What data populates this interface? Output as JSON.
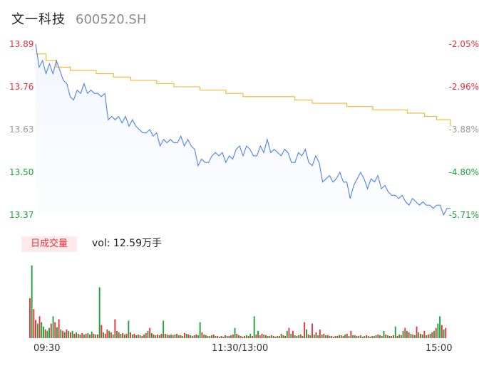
{
  "header": {
    "name": "文一科技",
    "code": "600520.SH"
  },
  "chart_data": {
    "type": "line",
    "price_axis": {
      "ticks": [
        "13.89",
        "13.76",
        "13.63",
        "13.50",
        "13.37"
      ],
      "tick_colors": [
        "#e8313b",
        "#e8313b",
        "#9a9a9a",
        "#1aa33a",
        "#1aa33a"
      ],
      "ylim": [
        13.37,
        13.89
      ]
    },
    "pct_axis": {
      "ticks": [
        "-2.05%",
        "-2.96%",
        "-3.88%",
        "-4.80%",
        "-5.71%"
      ],
      "tick_colors": [
        "#e8313b",
        "#e8313b",
        "#9a9a9a",
        "#1aa33a",
        "#1aa33a"
      ]
    },
    "x_ticks": [
      "09:30",
      "11:30/13:00",
      "15:00"
    ],
    "minutes_total": 240,
    "price_series": [
      [
        0,
        13.89
      ],
      [
        2,
        13.82
      ],
      [
        4,
        13.84
      ],
      [
        6,
        13.8
      ],
      [
        8,
        13.83
      ],
      [
        10,
        13.8
      ],
      [
        12,
        13.84
      ],
      [
        14,
        13.81
      ],
      [
        16,
        13.78
      ],
      [
        18,
        13.77
      ],
      [
        20,
        13.73
      ],
      [
        22,
        13.72
      ],
      [
        24,
        13.75
      ],
      [
        26,
        13.74
      ],
      [
        28,
        13.77
      ],
      [
        30,
        13.74
      ],
      [
        32,
        13.75
      ],
      [
        34,
        13.74
      ],
      [
        36,
        13.74
      ],
      [
        38,
        13.73
      ],
      [
        40,
        13.74
      ],
      [
        42,
        13.66
      ],
      [
        44,
        13.67
      ],
      [
        46,
        13.66
      ],
      [
        48,
        13.67
      ],
      [
        50,
        13.65
      ],
      [
        52,
        13.67
      ],
      [
        54,
        13.64
      ],
      [
        56,
        13.66
      ],
      [
        58,
        13.64
      ],
      [
        60,
        13.63
      ],
      [
        62,
        13.62
      ],
      [
        64,
        13.62
      ],
      [
        66,
        13.63
      ],
      [
        68,
        13.61
      ],
      [
        70,
        13.62
      ],
      [
        72,
        13.58
      ],
      [
        74,
        13.6
      ],
      [
        76,
        13.59
      ],
      [
        78,
        13.6
      ],
      [
        80,
        13.59
      ],
      [
        82,
        13.59
      ],
      [
        84,
        13.61
      ],
      [
        86,
        13.58
      ],
      [
        88,
        13.6
      ],
      [
        90,
        13.58
      ],
      [
        92,
        13.57
      ],
      [
        94,
        13.52
      ],
      [
        96,
        13.54
      ],
      [
        98,
        13.53
      ],
      [
        100,
        13.53
      ],
      [
        102,
        13.55
      ],
      [
        104,
        13.56
      ],
      [
        106,
        13.55
      ],
      [
        108,
        13.56
      ],
      [
        110,
        13.53
      ],
      [
        112,
        13.55
      ],
      [
        114,
        13.54
      ],
      [
        116,
        13.57
      ],
      [
        118,
        13.58
      ],
      [
        120,
        13.55
      ],
      [
        122,
        13.58
      ],
      [
        124,
        13.57
      ],
      [
        126,
        13.55
      ],
      [
        128,
        13.55
      ],
      [
        130,
        13.58
      ],
      [
        132,
        13.56
      ],
      [
        134,
        13.6
      ],
      [
        136,
        13.56
      ],
      [
        138,
        13.57
      ],
      [
        140,
        13.56
      ],
      [
        142,
        13.55
      ],
      [
        144,
        13.57
      ],
      [
        146,
        13.56
      ],
      [
        148,
        13.53
      ],
      [
        150,
        13.53
      ],
      [
        152,
        13.56
      ],
      [
        154,
        13.55
      ],
      [
        156,
        13.57
      ],
      [
        158,
        13.53
      ],
      [
        160,
        13.52
      ],
      [
        162,
        13.55
      ],
      [
        164,
        13.53
      ],
      [
        166,
        13.47
      ],
      [
        168,
        13.48
      ],
      [
        170,
        13.49
      ],
      [
        172,
        13.47
      ],
      [
        174,
        13.48
      ],
      [
        176,
        13.5
      ],
      [
        178,
        13.47
      ],
      [
        180,
        13.47
      ],
      [
        182,
        13.42
      ],
      [
        184,
        13.46
      ],
      [
        186,
        13.48
      ],
      [
        188,
        13.5
      ],
      [
        190,
        13.48
      ],
      [
        192,
        13.45
      ],
      [
        194,
        13.48
      ],
      [
        196,
        13.47
      ],
      [
        198,
        13.49
      ],
      [
        200,
        13.45
      ],
      [
        202,
        13.46
      ],
      [
        204,
        13.44
      ],
      [
        206,
        13.43
      ],
      [
        208,
        13.43
      ],
      [
        210,
        13.42
      ],
      [
        212,
        13.43
      ],
      [
        214,
        13.41
      ],
      [
        216,
        13.4
      ],
      [
        218,
        13.42
      ],
      [
        220,
        13.41
      ],
      [
        222,
        13.4
      ],
      [
        224,
        13.41
      ],
      [
        226,
        13.4
      ],
      [
        228,
        13.4
      ],
      [
        230,
        13.39
      ],
      [
        232,
        13.4
      ],
      [
        234,
        13.4
      ],
      [
        236,
        13.37
      ],
      [
        238,
        13.39
      ],
      [
        240,
        13.39
      ]
    ],
    "avg_series": [
      [
        0,
        13.86
      ],
      [
        6,
        13.84
      ],
      [
        12,
        13.82
      ],
      [
        20,
        13.81
      ],
      [
        30,
        13.81
      ],
      [
        35,
        13.8
      ],
      [
        45,
        13.79
      ],
      [
        55,
        13.78
      ],
      [
        70,
        13.77
      ],
      [
        80,
        13.76
      ],
      [
        95,
        13.75
      ],
      [
        110,
        13.74
      ],
      [
        120,
        13.73
      ],
      [
        135,
        13.73
      ],
      [
        150,
        13.72
      ],
      [
        160,
        13.71
      ],
      [
        170,
        13.71
      ],
      [
        180,
        13.7
      ],
      [
        195,
        13.69
      ],
      [
        205,
        13.69
      ],
      [
        215,
        13.68
      ],
      [
        225,
        13.67
      ],
      [
        232,
        13.66
      ],
      [
        240,
        13.64
      ]
    ],
    "volume": [
      0.55,
      1.0,
      0.4,
      0.25,
      0.2,
      0.3,
      0.22,
      0.16,
      0.12,
      0.1,
      0.14,
      0.2,
      0.3,
      0.22,
      0.15,
      0.26,
      0.12,
      0.1,
      0.08,
      0.12,
      0.1,
      0.08,
      0.1,
      0.06,
      0.08,
      0.06,
      0.05,
      0.07,
      0.05,
      0.06,
      0.07,
      0.05,
      0.09,
      0.06,
      0.05,
      0.05,
      0.7,
      0.18,
      0.08,
      0.06,
      0.12,
      0.1,
      0.08,
      0.05,
      0.26,
      0.1,
      0.08,
      0.06,
      0.07,
      0.05,
      0.06,
      0.24,
      0.08,
      0.05,
      0.06,
      0.04,
      0.05,
      0.04,
      0.03,
      0.05,
      0.07,
      0.1,
      0.14,
      0.07,
      0.05,
      0.04,
      0.05,
      0.04,
      0.06,
      0.24,
      0.06,
      0.05,
      0.04,
      0.05,
      0.04,
      0.05,
      0.06,
      0.04,
      0.04,
      0.03,
      0.07,
      0.06,
      0.05,
      0.04,
      0.03,
      0.04,
      0.05,
      0.04,
      0.22,
      0.08,
      0.05,
      0.04,
      0.03,
      0.03,
      0.04,
      0.05,
      0.03,
      0.03,
      0.02,
      0.03,
      0.02,
      0.04,
      0.03,
      0.03,
      0.04,
      0.05,
      0.14,
      0.06,
      0.04,
      0.03,
      0.02,
      0.03,
      0.04,
      0.03,
      0.06,
      0.03,
      0.3,
      0.05,
      0.1,
      0.04,
      0.06,
      0.05,
      0.04,
      0.03,
      0.03,
      0.04,
      0.03,
      0.02,
      0.03,
      0.03,
      0.06,
      0.04,
      0.03,
      0.1,
      0.14,
      0.06,
      0.1,
      0.04,
      0.03,
      0.04,
      0.05,
      0.03,
      0.22,
      0.12,
      0.05,
      0.04,
      0.2,
      0.05,
      0.08,
      0.04,
      0.12,
      0.05,
      0.06,
      0.04,
      0.04,
      0.03,
      0.03,
      0.02,
      0.03,
      0.03,
      0.04,
      0.04,
      0.03,
      0.05,
      0.06,
      0.03,
      0.1,
      0.04,
      0.04,
      0.03,
      0.03,
      0.04,
      0.02,
      0.03,
      0.04,
      0.03,
      0.02,
      0.03,
      0.03,
      0.04,
      0.05,
      0.04,
      0.03,
      0.1,
      0.05,
      0.04,
      0.03,
      0.03,
      0.04,
      0.16,
      0.03,
      0.05,
      0.04,
      0.1,
      0.14,
      0.1,
      0.08,
      0.06,
      0.05,
      0.04,
      0.16,
      0.08,
      0.06,
      0.05,
      0.1,
      0.04,
      0.05,
      0.06,
      0.08,
      0.1,
      0.14,
      0.2,
      0.3,
      0.18,
      0.12,
      0.14
    ],
    "volume_colors": [
      "r",
      "g",
      "r",
      "r",
      "g",
      "r",
      "g",
      "g",
      "r",
      "g",
      "g",
      "r",
      "g",
      "r",
      "g",
      "r",
      "g",
      "r",
      "g",
      "r",
      "g",
      "r",
      "g",
      "r",
      "g",
      "r",
      "g",
      "r",
      "g",
      "r",
      "g",
      "r",
      "g",
      "r",
      "g",
      "r",
      "g",
      "r",
      "g",
      "r",
      "r",
      "g",
      "r",
      "g",
      "r",
      "g",
      "r",
      "g",
      "r",
      "g",
      "r",
      "g",
      "r",
      "g",
      "r",
      "g",
      "r",
      "g",
      "r",
      "g",
      "r",
      "g",
      "r",
      "g",
      "r",
      "g",
      "r",
      "g",
      "r",
      "g",
      "r",
      "g",
      "r",
      "g",
      "r",
      "g",
      "r",
      "g",
      "r",
      "g",
      "r",
      "g",
      "r",
      "g",
      "r",
      "g",
      "r",
      "g",
      "g",
      "r",
      "g",
      "r",
      "g",
      "r",
      "g",
      "r",
      "g",
      "r",
      "g",
      "r",
      "g",
      "r",
      "g",
      "r",
      "g",
      "r",
      "g",
      "r",
      "g",
      "r",
      "g",
      "r",
      "g",
      "r",
      "g",
      "r",
      "g",
      "r",
      "g",
      "r",
      "r",
      "g",
      "r",
      "g",
      "r",
      "g",
      "r",
      "g",
      "r",
      "g",
      "r",
      "g",
      "r",
      "g",
      "r",
      "g",
      "r",
      "g",
      "r",
      "g",
      "r",
      "g",
      "r",
      "g",
      "r",
      "g",
      "r",
      "g",
      "r",
      "g",
      "r",
      "g",
      "r",
      "g",
      "r",
      "g",
      "r",
      "g",
      "r",
      "g",
      "r",
      "g",
      "r",
      "g",
      "r",
      "g",
      "r",
      "g",
      "r",
      "g",
      "r",
      "g",
      "r",
      "g",
      "r",
      "g",
      "r",
      "g",
      "r",
      "g",
      "r",
      "g",
      "r",
      "g",
      "r",
      "g",
      "r",
      "g",
      "r",
      "g",
      "r",
      "g",
      "r",
      "g",
      "r",
      "g",
      "r",
      "g",
      "r",
      "g",
      "r",
      "g",
      "r",
      "g",
      "r",
      "g",
      "r",
      "g",
      "r",
      "g",
      "r",
      "g",
      "g",
      "r",
      "g",
      "r"
    ],
    "colors": {
      "price": "#4a84e8",
      "avg": "#f2b431",
      "up": "#e8313b",
      "down": "#1aa33a"
    }
  },
  "volume_panel": {
    "tag": "日成交量",
    "vol_text": "vol: 12.59万手"
  }
}
